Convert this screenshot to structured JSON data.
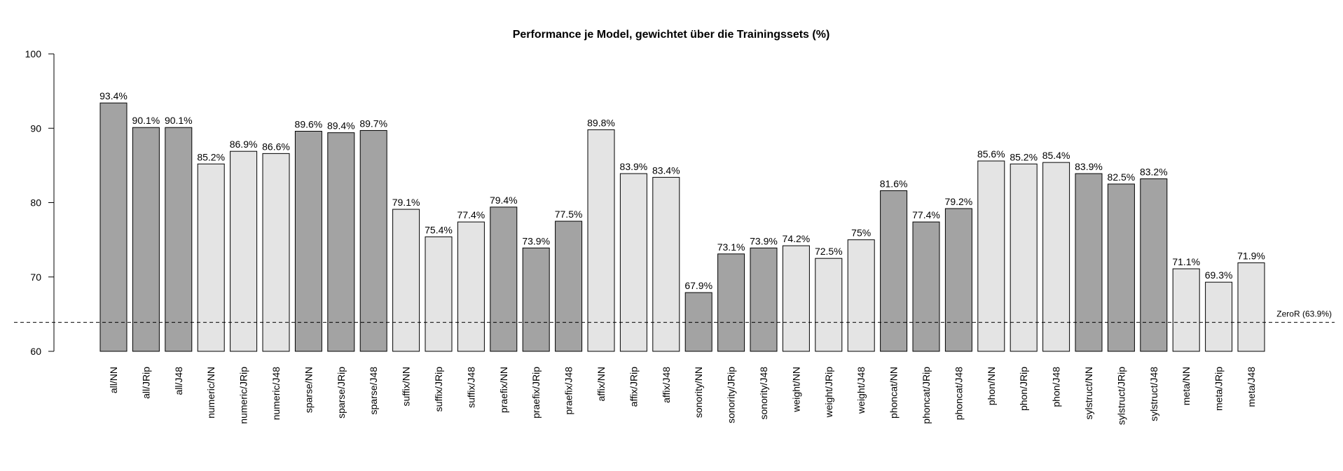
{
  "chart_data": {
    "type": "bar",
    "title": "Performance je Model, gewichtet über die Trainingssets (%)",
    "xlabel": "",
    "ylabel": "",
    "ylim": [
      60,
      100
    ],
    "yticks": [
      60,
      70,
      80,
      90,
      100
    ],
    "grid": false,
    "colors": {
      "dark": "#a3a3a3",
      "light": "#e4e4e4",
      "border": "#000000"
    },
    "categories": [
      "all/NN",
      "all/JRip",
      "all/J48",
      "numeric/NN",
      "numeric/JRip",
      "numeric/J48",
      "sparse/NN",
      "sparse/JRip",
      "sparse/J48",
      "suffix/NN",
      "suffix/JRip",
      "suffix/J48",
      "praefix/NN",
      "praefix/JRip",
      "praefix/J48",
      "affix/NN",
      "affix/JRip",
      "affix/J48",
      "sonority/NN",
      "sonority/JRip",
      "sonority/J48",
      "weight/NN",
      "weight/JRip",
      "weight/J48",
      "phoncat/NN",
      "phoncat/JRip",
      "phoncat/J48",
      "phon/NN",
      "phon/JRip",
      "phon/J48",
      "sylstruct/NN",
      "sylstruct/JRip",
      "sylstruct/J48",
      "meta/NN",
      "meta/JRip",
      "meta/J48"
    ],
    "values": [
      93.4,
      90.1,
      90.1,
      85.2,
      86.9,
      86.6,
      89.6,
      89.4,
      89.7,
      79.1,
      75.4,
      77.4,
      79.4,
      73.9,
      77.5,
      89.8,
      83.9,
      83.4,
      67.9,
      73.1,
      73.9,
      74.2,
      72.5,
      75,
      81.6,
      77.4,
      79.2,
      85.6,
      85.2,
      85.4,
      83.9,
      82.5,
      83.2,
      71.1,
      69.3,
      71.9
    ],
    "value_labels": [
      "93.4%",
      "90.1%",
      "90.1%",
      "85.2%",
      "86.9%",
      "86.6%",
      "89.6%",
      "89.4%",
      "89.7%",
      "79.1%",
      "75.4%",
      "77.4%",
      "79.4%",
      "73.9%",
      "77.5%",
      "89.8%",
      "83.9%",
      "83.4%",
      "67.9%",
      "73.1%",
      "73.9%",
      "74.2%",
      "72.5%",
      "75%",
      "81.6%",
      "77.4%",
      "79.2%",
      "85.6%",
      "85.2%",
      "85.4%",
      "83.9%",
      "82.5%",
      "83.2%",
      "71.1%",
      "69.3%",
      "71.9%"
    ],
    "shading": [
      "dark",
      "dark",
      "dark",
      "light",
      "light",
      "light",
      "dark",
      "dark",
      "dark",
      "light",
      "light",
      "light",
      "dark",
      "dark",
      "dark",
      "light",
      "light",
      "light",
      "dark",
      "dark",
      "dark",
      "light",
      "light",
      "light",
      "dark",
      "dark",
      "dark",
      "light",
      "light",
      "light",
      "dark",
      "dark",
      "dark",
      "light",
      "light",
      "light"
    ],
    "reference_line": {
      "value": 63.9,
      "label": "ZeroR (63.9%)",
      "style": "dashed"
    }
  }
}
